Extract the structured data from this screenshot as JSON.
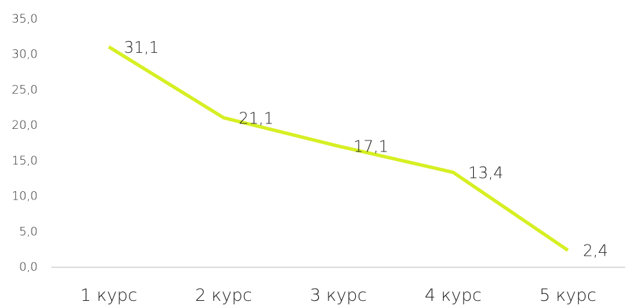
{
  "chart_data": {
    "type": "line",
    "categories": [
      "1 курс",
      "2 курс",
      "3 курс",
      "4 курс",
      "5 курс"
    ],
    "values": [
      31.1,
      21.1,
      17.1,
      13.4,
      2.4
    ],
    "value_labels": [
      "31,1",
      "21,1",
      "17,1",
      "13,4",
      "2,4"
    ],
    "color": "#d6ef23",
    "ylim": [
      0,
      35
    ],
    "yticks": [
      {
        "value": 0,
        "label": "0,0"
      },
      {
        "value": 5,
        "label": "5,0"
      },
      {
        "value": 10,
        "label": "10,0"
      },
      {
        "value": 15,
        "label": "15,0"
      },
      {
        "value": 20,
        "label": "20,0"
      },
      {
        "value": 25,
        "label": "25,0"
      },
      {
        "value": 30,
        "label": "30,0"
      },
      {
        "value": 35,
        "label": "35,0"
      }
    ],
    "grid": false
  }
}
